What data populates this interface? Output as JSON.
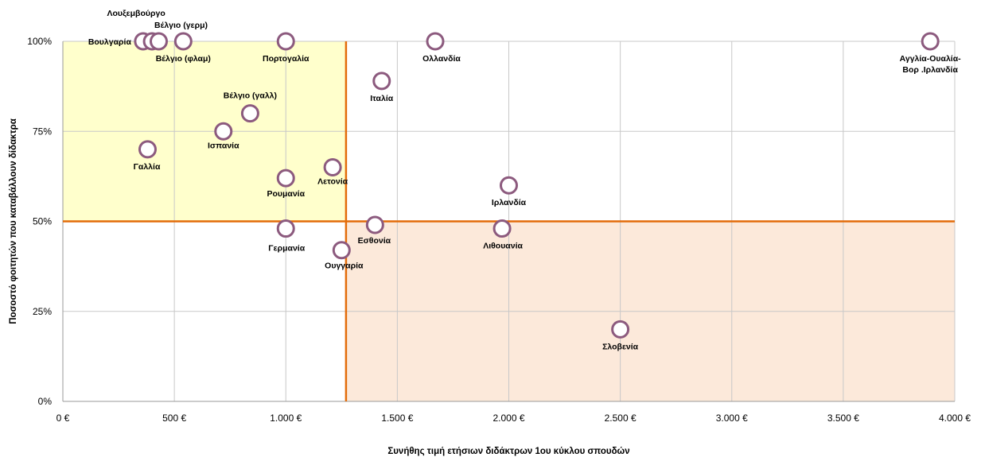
{
  "chart_data": {
    "type": "scatter",
    "xlabel": "Συνήθης τιμή ετήσιων διδάκτρων 1ου κύκλου σπουδών",
    "ylabel": "Ποσοστό φοιτητών που καταβάλλουν δίδακτρα",
    "xlim": [
      0,
      4000
    ],
    "ylim": [
      0,
      100
    ],
    "x_ticks": [
      0,
      500,
      1000,
      1500,
      2000,
      2500,
      3000,
      3500,
      4000
    ],
    "x_tick_labels": [
      "0 €",
      "500 €",
      "1.000 €",
      "1.500 €",
      "2.000 €",
      "2.500 €",
      "3.000 €",
      "3.500 €",
      "4.000 €"
    ],
    "y_ticks": [
      0,
      25,
      50,
      75,
      100
    ],
    "y_tick_labels": [
      "0%",
      "25%",
      "50%",
      "75%",
      "100%"
    ],
    "grid": true,
    "reference_lines": {
      "x": 1270,
      "y": 50,
      "color": "#E36C0A"
    },
    "shaded_regions": [
      {
        "x": [
          0,
          1270
        ],
        "y": [
          50,
          100
        ],
        "color": "#FFFFCC"
      },
      {
        "x": [
          1270,
          4000
        ],
        "y": [
          0,
          50
        ],
        "color": "#FCE9DA"
      }
    ],
    "marker_color": "#8C5A7E",
    "points": [
      {
        "label": "Βουλγαρία",
        "x": 360,
        "y": 100
      },
      {
        "label": "Λουξεμβούργο",
        "x": 400,
        "y": 100
      },
      {
        "label": "Βέλγιο (γερμ)",
        "x": 430,
        "y": 100
      },
      {
        "label": "Βέλγιο (φλαμ)",
        "x": 540,
        "y": 100
      },
      {
        "label": "Πορτογαλία",
        "x": 1000,
        "y": 100
      },
      {
        "label": "Ολλανδία",
        "x": 1670,
        "y": 100
      },
      {
        "label": "Αγγλία-Ουαλία-Βορ .Ιρλανδία",
        "x": 3890,
        "y": 100
      },
      {
        "label": "Ιταλία",
        "x": 1430,
        "y": 89
      },
      {
        "label": "Βέλγιο (γαλλ)",
        "x": 840,
        "y": 80
      },
      {
        "label": "Ισπανία",
        "x": 720,
        "y": 75
      },
      {
        "label": "Γαλλία",
        "x": 380,
        "y": 70
      },
      {
        "label": "Λετονία",
        "x": 1210,
        "y": 65
      },
      {
        "label": "Ρουμανία",
        "x": 1000,
        "y": 62
      },
      {
        "label": "Ιρλανδία",
        "x": 2000,
        "y": 60
      },
      {
        "label": "Εσθονία",
        "x": 1400,
        "y": 49
      },
      {
        "label": "Γερμανία",
        "x": 1000,
        "y": 48
      },
      {
        "label": "Λιθουανία",
        "x": 1970,
        "y": 48
      },
      {
        "label": "Ουγγαρία",
        "x": 1250,
        "y": 42
      },
      {
        "label": "Σλοβενία",
        "x": 2500,
        "y": 20
      }
    ]
  }
}
